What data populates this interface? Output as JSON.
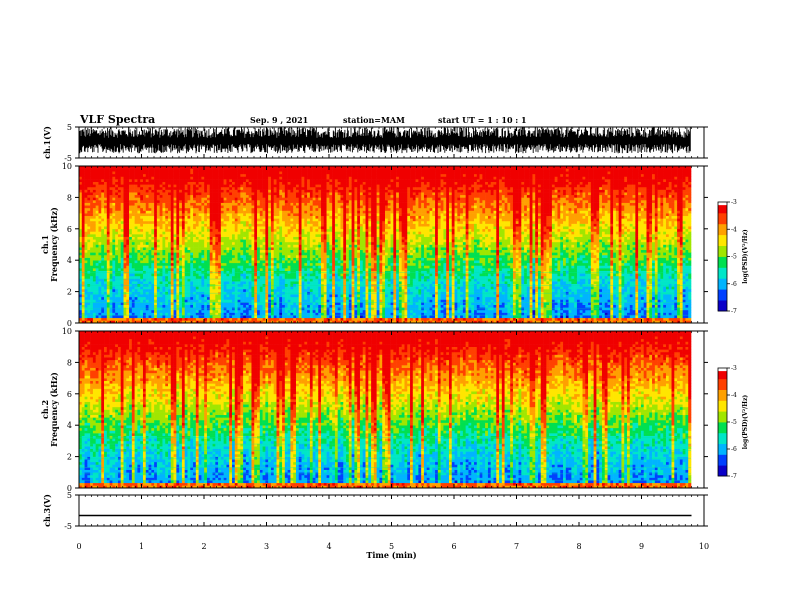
{
  "header": {
    "title": "VLF Spectra",
    "date": "Sep. 9  , 2021",
    "station": "station=MAM",
    "start": "start  UT =  1 : 10 : 1"
  },
  "colors": {
    "axis": "#000000",
    "colormap": [
      "#0a00c8",
      "#0040ff",
      "#00b4ff",
      "#00e6c8",
      "#00e050",
      "#a0e600",
      "#ffe600",
      "#ffa000",
      "#ff4000",
      "#f00000",
      "#ffffff"
    ]
  },
  "chart_data": [
    {
      "type": "line",
      "name": "ch1-waveform",
      "ylabel": "ch.1(V)",
      "ylim": [
        -5,
        5
      ],
      "yticks": [
        "5",
        "-5"
      ],
      "description_of_signal": "dense noise burst between roughly -3 and +5 V"
    },
    {
      "type": "heatmap",
      "name": "ch1-spectrogram",
      "ylabel": "ch.1\nFrequency  (kHz)",
      "ylabel_lines": [
        "ch.1",
        "Frequency  (kHz)"
      ],
      "ylim": [
        0,
        10
      ],
      "yticks": [
        "0",
        "2",
        "4",
        "6",
        "8",
        "10"
      ],
      "colorbar": {
        "label": "log(PSD)(V²/Hz)",
        "range": [
          -7,
          -3
        ],
        "ticks": [
          "-3",
          "-4",
          "-5",
          "-6",
          "-7"
        ]
      }
    },
    {
      "type": "heatmap",
      "name": "ch2-spectrogram",
      "ylabel": "ch.2\nFrequency  (kHz)",
      "ylabel_lines": [
        "ch.2",
        "Frequency  (kHz)"
      ],
      "ylim": [
        0,
        10
      ],
      "yticks": [
        "0",
        "2",
        "4",
        "6",
        "8",
        "10"
      ],
      "colorbar": {
        "label": "log(PSD)(V²/Hz)",
        "range": [
          -7,
          -3
        ],
        "ticks": [
          "-3",
          "-4",
          "-5",
          "-6",
          "-7"
        ]
      }
    },
    {
      "type": "line",
      "name": "ch3-waveform",
      "ylabel": "ch.3(V)",
      "ylim": [
        -5,
        5
      ],
      "yticks": [
        "5",
        "-5"
      ],
      "values": [
        [
          0,
          -1.6
        ],
        [
          9.8,
          -1.6
        ]
      ]
    }
  ],
  "xaxis": {
    "label": "Time  (min)",
    "range": [
      0,
      10
    ],
    "ticks": [
      "0",
      "1",
      "2",
      "3",
      "4",
      "5",
      "6",
      "7",
      "8",
      "9",
      "10"
    ]
  }
}
